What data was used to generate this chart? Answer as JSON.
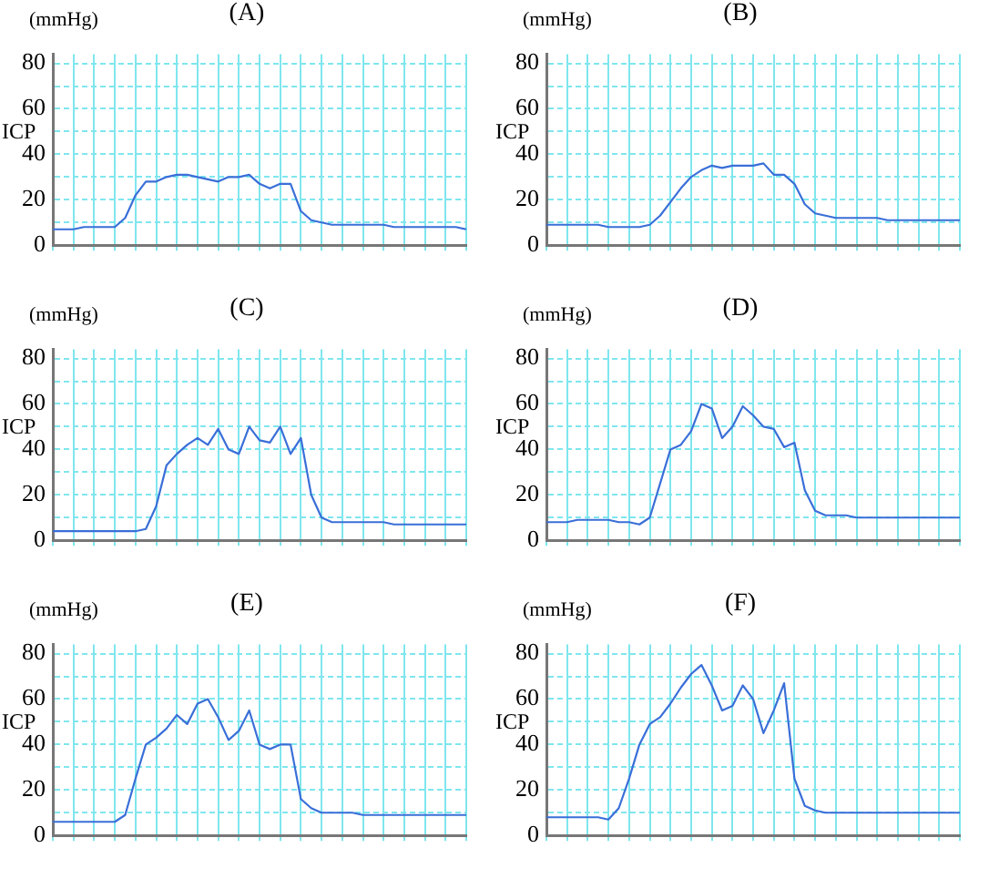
{
  "chart_data": [
    {
      "type": "line",
      "title": "(A)",
      "subtitle": "(mmHg)",
      "ylabel": "ICP",
      "categories": [
        null,
        null,
        null,
        null,
        null,
        null,
        null,
        null,
        null,
        null,
        null,
        null,
        null,
        null,
        null,
        null,
        null,
        null,
        null,
        null,
        null,
        null,
        null,
        null,
        null,
        null,
        null,
        null,
        null,
        null,
        null,
        null,
        null,
        null,
        null,
        null,
        null,
        null,
        null,
        null,
        null
      ],
      "series": [
        {
          "color": "#3a6fd8",
          "values": [
            7,
            7,
            7,
            8,
            8,
            8,
            8,
            12,
            22,
            28,
            28,
            30,
            31,
            31,
            30,
            29,
            28,
            30,
            30,
            31,
            27,
            25,
            27,
            27,
            15,
            11,
            10,
            9,
            9,
            9,
            9,
            9,
            9,
            8,
            8,
            8,
            8,
            8,
            8,
            8,
            7
          ]
        }
      ],
      "ylim": [
        0,
        84
      ],
      "yticks": [
        0,
        {
          "value": 10,
          "label": null
        },
        20,
        {
          "value": 30,
          "label": null
        },
        40,
        {
          "value": 50,
          "label": null
        },
        60,
        {
          "value": 70,
          "label": null
        },
        80
      ],
      "grid": true,
      "marker": "none"
    },
    {
      "type": "line",
      "title": "(B)",
      "subtitle": "(mmHg)",
      "ylabel": "ICP",
      "categories": [
        null,
        null,
        null,
        null,
        null,
        null,
        null,
        null,
        null,
        null,
        null,
        null,
        null,
        null,
        null,
        null,
        null,
        null,
        null,
        null,
        null,
        null,
        null,
        null,
        null,
        null,
        null,
        null,
        null,
        null,
        null,
        null,
        null,
        null,
        null,
        null,
        null,
        null,
        null,
        null,
        null
      ],
      "series": [
        {
          "color": "#3a6fd8",
          "values": [
            9,
            9,
            9,
            9,
            9,
            9,
            8,
            8,
            8,
            8,
            9,
            13,
            19,
            25,
            30,
            33,
            35,
            34,
            35,
            35,
            35,
            36,
            31,
            31,
            27,
            18,
            14,
            13,
            12,
            12,
            12,
            12,
            12,
            11,
            11,
            11,
            11,
            11,
            11,
            11,
            11
          ]
        }
      ],
      "ylim": [
        0,
        84
      ],
      "yticks": [
        0,
        {
          "value": 10,
          "label": null
        },
        20,
        {
          "value": 30,
          "label": null
        },
        40,
        {
          "value": 50,
          "label": null
        },
        60,
        {
          "value": 70,
          "label": null
        },
        80
      ],
      "grid": true,
      "marker": "none"
    },
    {
      "type": "line",
      "title": "(C)",
      "subtitle": "(mmHg)",
      "ylabel": "ICP",
      "categories": [
        null,
        null,
        null,
        null,
        null,
        null,
        null,
        null,
        null,
        null,
        null,
        null,
        null,
        null,
        null,
        null,
        null,
        null,
        null,
        null,
        null,
        null,
        null,
        null,
        null,
        null,
        null,
        null,
        null,
        null,
        null,
        null,
        null,
        null,
        null,
        null,
        null,
        null,
        null,
        null,
        null
      ],
      "series": [
        {
          "color": "#3a6fd8",
          "values": [
            4,
            4,
            4,
            4,
            4,
            4,
            4,
            4,
            4,
            5,
            15,
            33,
            38,
            42,
            45,
            42,
            49,
            40,
            38,
            50,
            44,
            43,
            50,
            38,
            45,
            20,
            10,
            8,
            8,
            8,
            8,
            8,
            8,
            7,
            7,
            7,
            7,
            7,
            7,
            7,
            7
          ]
        }
      ],
      "ylim": [
        0,
        84
      ],
      "yticks": [
        0,
        {
          "value": 10,
          "label": null
        },
        20,
        {
          "value": 30,
          "label": null
        },
        40,
        {
          "value": 50,
          "label": null
        },
        60,
        {
          "value": 70,
          "label": null
        },
        80
      ],
      "grid": true,
      "marker": "none"
    },
    {
      "type": "line",
      "title": "(D)",
      "subtitle": "(mmHg)",
      "ylabel": "ICP",
      "categories": [
        null,
        null,
        null,
        null,
        null,
        null,
        null,
        null,
        null,
        null,
        null,
        null,
        null,
        null,
        null,
        null,
        null,
        null,
        null,
        null,
        null,
        null,
        null,
        null,
        null,
        null,
        null,
        null,
        null,
        null,
        null,
        null,
        null,
        null,
        null,
        null,
        null,
        null,
        null,
        null,
        null
      ],
      "series": [
        {
          "color": "#3a6fd8",
          "values": [
            8,
            8,
            8,
            9,
            9,
            9,
            9,
            8,
            8,
            7,
            10,
            25,
            40,
            42,
            48,
            60,
            58,
            45,
            50,
            59,
            55,
            50,
            49,
            41,
            43,
            22,
            13,
            11,
            11,
            11,
            10,
            10,
            10,
            10,
            10,
            10,
            10,
            10,
            10,
            10,
            10
          ]
        }
      ],
      "ylim": [
        0,
        84
      ],
      "yticks": [
        0,
        {
          "value": 10,
          "label": null
        },
        20,
        {
          "value": 30,
          "label": null
        },
        40,
        {
          "value": 50,
          "label": null
        },
        60,
        {
          "value": 70,
          "label": null
        },
        80
      ],
      "grid": true,
      "marker": "none"
    },
    {
      "type": "line",
      "title": "(E)",
      "subtitle": "(mmHg)",
      "ylabel": "ICP",
      "categories": [
        null,
        null,
        null,
        null,
        null,
        null,
        null,
        null,
        null,
        null,
        null,
        null,
        null,
        null,
        null,
        null,
        null,
        null,
        null,
        null,
        null,
        null,
        null,
        null,
        null,
        null,
        null,
        null,
        null,
        null,
        null,
        null,
        null,
        null,
        null,
        null,
        null,
        null,
        null,
        null,
        null
      ],
      "series": [
        {
          "color": "#3a6fd8",
          "values": [
            6,
            6,
            6,
            6,
            6,
            6,
            6,
            9,
            25,
            40,
            43,
            47,
            53,
            49,
            58,
            60,
            52,
            42,
            46,
            55,
            40,
            38,
            40,
            40,
            16,
            12,
            10,
            10,
            10,
            10,
            9,
            9,
            9,
            9,
            9,
            9,
            9,
            9,
            9,
            9,
            9
          ]
        }
      ],
      "ylim": [
        0,
        84
      ],
      "yticks": [
        0,
        {
          "value": 10,
          "label": null
        },
        20,
        {
          "value": 30,
          "label": null
        },
        40,
        {
          "value": 50,
          "label": null
        },
        60,
        {
          "value": 70,
          "label": null
        },
        80
      ],
      "grid": true,
      "marker": "none"
    },
    {
      "type": "line",
      "title": "(F)",
      "subtitle": "(mmHg)",
      "ylabel": "ICP",
      "categories": [
        null,
        null,
        null,
        null,
        null,
        null,
        null,
        null,
        null,
        null,
        null,
        null,
        null,
        null,
        null,
        null,
        null,
        null,
        null,
        null,
        null,
        null,
        null,
        null,
        null,
        null,
        null,
        null,
        null,
        null,
        null,
        null,
        null,
        null,
        null,
        null,
        null,
        null,
        null,
        null,
        null
      ],
      "series": [
        {
          "color": "#3a6fd8",
          "values": [
            8,
            8,
            8,
            8,
            8,
            8,
            7,
            12,
            25,
            40,
            49,
            52,
            58,
            65,
            71,
            75,
            66,
            55,
            57,
            66,
            60,
            45,
            55,
            67,
            25,
            13,
            11,
            10,
            10,
            10,
            10,
            10,
            10,
            10,
            10,
            10,
            10,
            10,
            10,
            10,
            10
          ]
        }
      ],
      "ylim": [
        0,
        84
      ],
      "yticks": [
        0,
        {
          "value": 10,
          "label": null
        },
        20,
        {
          "value": 30,
          "label": null
        },
        40,
        {
          "value": 50,
          "label": null
        },
        60,
        {
          "value": 70,
          "label": null
        },
        80
      ],
      "grid": true,
      "marker": "none"
    }
  ]
}
